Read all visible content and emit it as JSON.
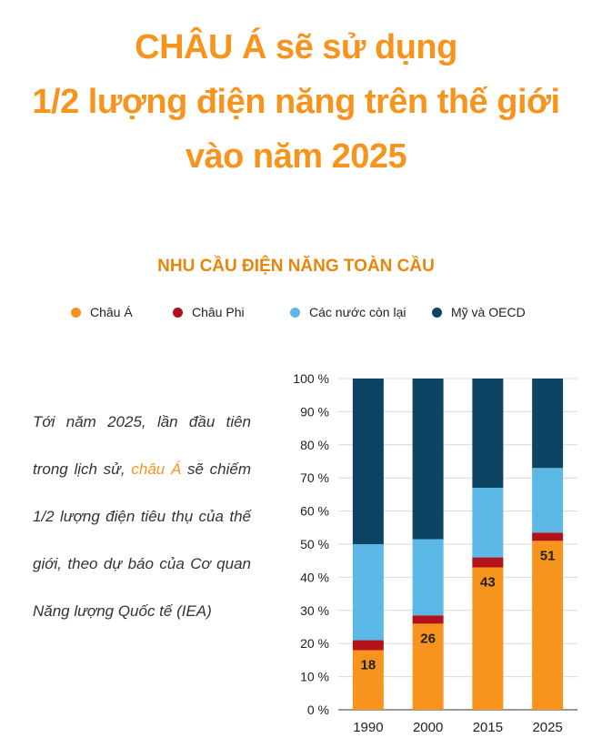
{
  "title_lines": [
    "CHÂU Á sẽ sử dụng",
    "1/2 lượng điện năng trên thế giới",
    "vào năm 2025"
  ],
  "note": {
    "before": "Tới năm 2025, lần đầu tiên trong lịch sử, ",
    "highlight": "châu Á",
    "after": " sẽ chiếm 1/2 lượng điện tiêu thụ của thế giới, theo dự báo của Cơ quan Năng lượng Quốc tế (IEA)"
  },
  "colors": {
    "title": "#f7941d",
    "highlight": "#f7941d"
  },
  "chart_data": {
    "type": "bar",
    "stacked": true,
    "title": "NHU CẦU ĐIỆN NĂNG TOÀN CẦU",
    "categories": [
      "1990",
      "2000",
      "2015",
      "2025"
    ],
    "series": [
      {
        "name": "Châu Á",
        "color": "#f7941d",
        "values": [
          18,
          26,
          43,
          51
        ]
      },
      {
        "name": "Châu Phi",
        "color": "#b3121b",
        "values": [
          3,
          2.5,
          3,
          2.5
        ]
      },
      {
        "name": "Các nước còn lại",
        "color": "#5cb8e6",
        "values": [
          29,
          23,
          21,
          19.5
        ]
      },
      {
        "name": "Mỹ và OECD",
        "color": "#0d4463",
        "values": [
          50,
          48.5,
          33,
          27
        ]
      }
    ],
    "data_labels": [
      "18",
      "26",
      "43",
      "51"
    ],
    "ylim": [
      0,
      100
    ],
    "yticks": [
      0,
      10,
      20,
      30,
      40,
      50,
      60,
      70,
      80,
      90,
      100
    ],
    "ytick_labels": [
      "0 %",
      "10 %",
      "20 %",
      "30 %",
      "40 %",
      "50 %",
      "60 %",
      "70 %",
      "80 %",
      "90 %",
      "100 %"
    ],
    "grid": true,
    "legend_position": "top"
  }
}
